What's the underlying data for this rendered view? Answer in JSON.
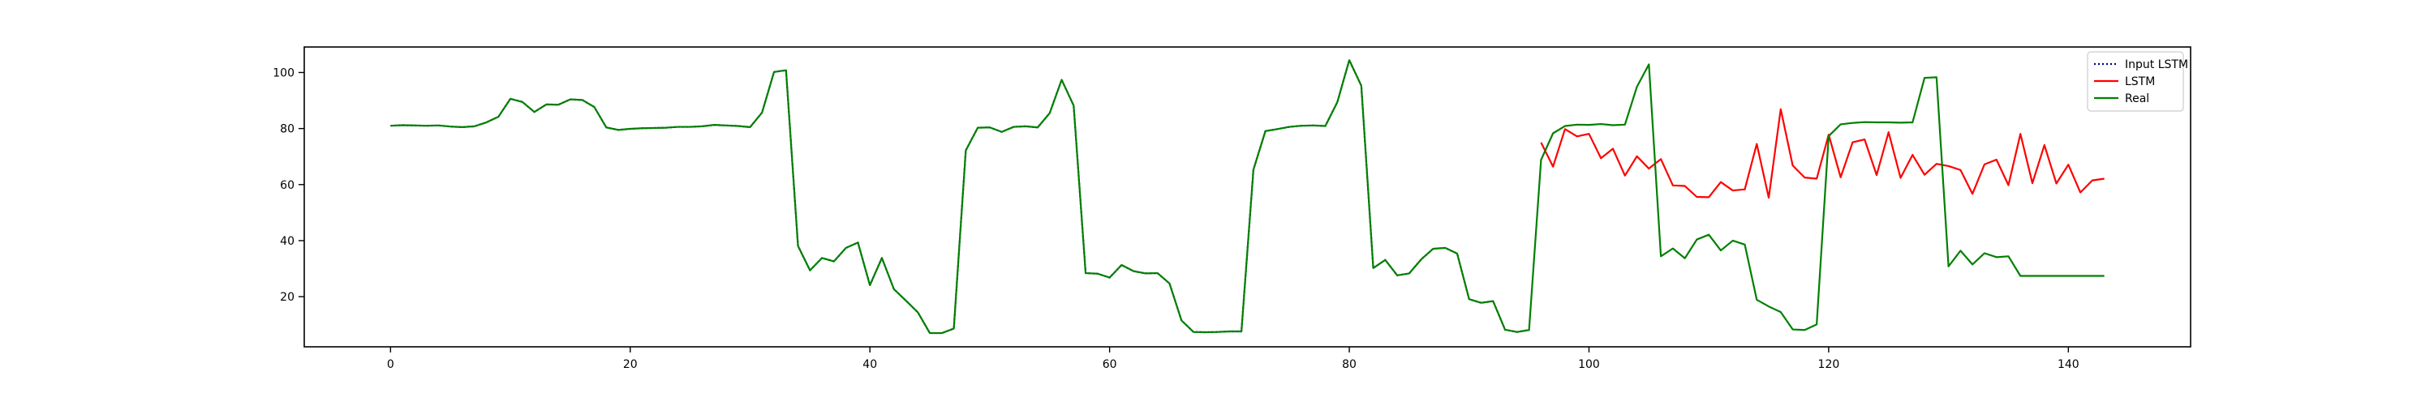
{
  "chart_data": {
    "type": "line",
    "title": "",
    "xlabel": "",
    "ylabel": "",
    "xlim": [
      -7.2,
      150.2
    ],
    "ylim": [
      2.1,
      109.1
    ],
    "x_ticks": [
      0,
      20,
      40,
      60,
      80,
      100,
      120,
      140
    ],
    "y_ticks": [
      20,
      40,
      60,
      80,
      100
    ],
    "grid": false,
    "legend_position": "top-right",
    "series": [
      {
        "name": "Input LSTM",
        "color": "#00008b",
        "style": "dotted",
        "x_start": 0,
        "values": [
          81,
          81.2,
          81.1,
          81,
          81.1,
          80.7,
          80.5,
          80.8,
          82.2,
          84.2,
          90.6,
          89.5,
          85.9,
          88.6,
          88.5,
          90.4,
          90.2,
          87.7,
          80.4,
          79.5,
          79.9,
          80.1,
          80.2,
          80.3,
          80.6,
          80.6,
          80.8,
          81.3,
          81.1,
          80.9,
          80.5,
          85.7,
          100.2,
          100.8,
          38.1,
          29.4,
          33.8,
          32.6,
          37.4,
          39.3,
          24.1,
          33.8,
          22.7,
          18.6,
          14.4,
          7,
          7,
          8.6,
          72.2,
          80.3,
          80.4,
          78.8,
          80.6,
          80.8,
          80.4,
          85.5,
          97.4,
          88.2,
          28.4,
          28.2,
          26.8,
          31.3,
          29.1,
          28.3,
          28.4,
          24.7,
          11.5,
          7.4,
          7.3,
          7.4,
          7.6,
          7.6,
          65.3,
          79.1,
          79.8,
          80.6,
          81,
          81.1,
          80.9,
          89.4,
          104.4,
          95.3,
          30.2,
          33.1,
          27.6,
          28.3,
          33.3,
          37.1,
          37.4,
          35.4,
          19.1,
          17.8,
          18.4,
          8.2,
          7.4,
          8.1
        ]
      },
      {
        "name": "LSTM",
        "color": "#ff0000",
        "style": "solid",
        "x_start": 96,
        "values": [
          75,
          66.4,
          79.8,
          77.2,
          78.1,
          69.4,
          72.8,
          63.2,
          70.1,
          65.7,
          69.1,
          59.7,
          59.5,
          55.6,
          55.5,
          60.9,
          57.9,
          58.3,
          74.5,
          55.3,
          86.9,
          66.8,
          62.5,
          62.1,
          77.8,
          62.6,
          75.1,
          76.1,
          63.4,
          78.7,
          62.4,
          70.6,
          63.5,
          67.4,
          66.6,
          65.2,
          56.7,
          67.2,
          68.9,
          59.8,
          78.1,
          60.5,
          74.1,
          60.4,
          67.1,
          57.2,
          61.5,
          62.1
        ]
      },
      {
        "name": "Real",
        "color": "#008000",
        "style": "solid",
        "x_start": 0,
        "values": [
          81,
          81.2,
          81.1,
          81,
          81.1,
          80.7,
          80.5,
          80.8,
          82.2,
          84.2,
          90.6,
          89.5,
          85.9,
          88.6,
          88.5,
          90.4,
          90.2,
          87.7,
          80.4,
          79.5,
          79.9,
          80.1,
          80.2,
          80.3,
          80.6,
          80.6,
          80.8,
          81.3,
          81.1,
          80.9,
          80.5,
          85.7,
          100.2,
          100.8,
          38.1,
          29.4,
          33.8,
          32.6,
          37.4,
          39.3,
          24.1,
          33.8,
          22.7,
          18.6,
          14.4,
          7,
          7,
          8.6,
          72.2,
          80.3,
          80.4,
          78.8,
          80.6,
          80.8,
          80.4,
          85.5,
          97.4,
          88.2,
          28.4,
          28.2,
          26.8,
          31.3,
          29.1,
          28.3,
          28.4,
          24.7,
          11.5,
          7.4,
          7.3,
          7.4,
          7.6,
          7.6,
          65.3,
          79.1,
          79.8,
          80.6,
          81,
          81.1,
          80.9,
          89.4,
          104.4,
          95.3,
          30.2,
          33.1,
          27.6,
          28.3,
          33.3,
          37.1,
          37.4,
          35.4,
          19.1,
          17.8,
          18.4,
          8.2,
          7.4,
          8.1,
          68.8,
          78.3,
          80.9,
          81.4,
          81.3,
          81.6,
          81.2,
          81.4,
          94.9,
          102.9,
          34.4,
          37.2,
          33.7,
          40.4,
          42.1,
          36.5,
          40,
          38.6,
          18.9,
          16.5,
          14.5,
          8.3,
          8.1,
          10.1,
          77.3,
          81.5,
          82,
          82.3,
          82.2,
          82.2,
          82.1,
          82.2,
          98.1,
          98.3,
          30.8,
          36.4,
          31.5,
          35.5,
          34.1,
          34.4,
          27.4,
          27.4,
          27.4,
          27.4,
          27.4,
          27.4,
          27.4,
          27.4
        ]
      }
    ]
  }
}
